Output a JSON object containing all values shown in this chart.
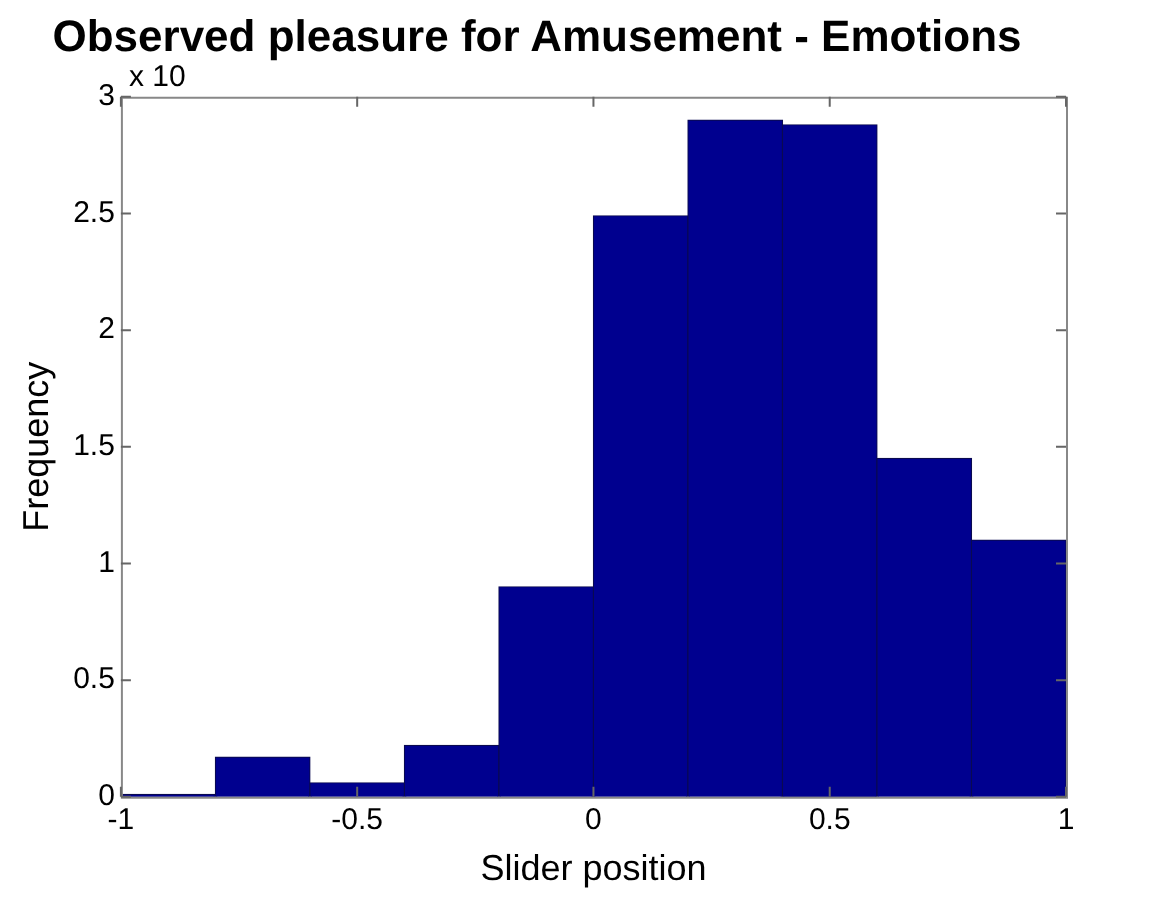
{
  "chart_data": {
    "type": "histogram",
    "title": "Observed pleasure for Amusement - Emotions",
    "xlabel": "Slider position",
    "ylabel": "Frequency",
    "annotations": [
      "x 10"
    ],
    "bins": [
      -1,
      -0.8,
      -0.6,
      -0.4,
      -0.2,
      0,
      0.2,
      0.4,
      0.6,
      0.8,
      1
    ],
    "values": [
      0.01,
      0.17,
      0.06,
      0.22,
      0.9,
      2.49,
      2.9,
      2.88,
      1.45,
      1.1
    ],
    "color": "#00008f",
    "xlim": [
      -1,
      1
    ],
    "xticks": [
      -1,
      -0.5,
      0,
      0.5,
      1
    ],
    "ylim": [
      0,
      3
    ],
    "yticks": [
      0,
      0.5,
      1,
      1.5,
      2,
      2.5,
      3
    ],
    "grid": false,
    "legend": false
  }
}
